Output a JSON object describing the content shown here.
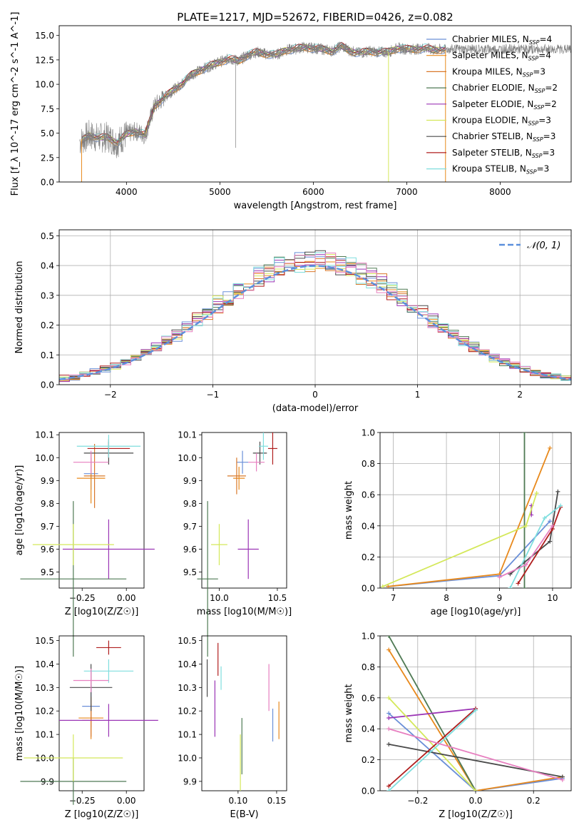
{
  "figure": {
    "title": "PLATE=1217, MJD=52672, FIBERID=0426, z=0.082"
  },
  "colors": {
    "Chabrier MILES": "#6a8fd8",
    "Salpeter MILES": "#e8891c",
    "Kroupa MILES": "#d9782a",
    "Chabrier ELODIE": "#4f7a54",
    "Salpeter ELODIE": "#9b35b5",
    "Kroupa ELODIE": "#d4e85a",
    "Chabrier STELIB": "#4a4a4a",
    "Salpeter STELIB": "#b01e1e",
    "Kroupa STELIB": "#7fdede",
    "data": "#808080",
    "pink": "#e77fc0"
  },
  "chart_data": [
    {
      "id": "spectrum",
      "type": "line",
      "xlabel": "wavelength [Angstrom, rest frame]",
      "ylabel": "Flux [f_λ 10^-17 erg cm^-2 s^-1 A^-1]",
      "xlim": [
        3280,
        8760
      ],
      "ylim": [
        0,
        16
      ],
      "xticks": [
        4000,
        5000,
        6000,
        7000,
        8000
      ],
      "yticks": [
        0.0,
        2.5,
        5.0,
        7.5,
        10.0,
        12.5,
        15.0
      ],
      "legend_position": "upper-right",
      "anchors_x": [
        3520,
        3600,
        3700,
        3800,
        3900,
        4000,
        4100,
        4200,
        4300,
        4400,
        4500,
        4600,
        4700,
        4800,
        4900,
        5000,
        5100,
        5200,
        5300,
        5400,
        5500,
        5600,
        5700,
        5800,
        5900,
        6000,
        6100,
        6200,
        6300,
        6400,
        6500,
        6600,
        6700,
        6800,
        6900,
        7000,
        7100,
        7200,
        7300,
        7400
      ],
      "anchors_y": [
        4.2,
        4.8,
        4.5,
        4.6,
        4.0,
        4.9,
        5.2,
        4.8,
        7.8,
        8.6,
        9.4,
        10.1,
        11.0,
        11.5,
        11.9,
        12.3,
        12.6,
        12.4,
        13.0,
        13.3,
        13.1,
        13.0,
        13.5,
        13.6,
        13.8,
        13.7,
        13.6,
        13.4,
        13.9,
        13.4,
        13.2,
        13.4,
        13.3,
        13.3,
        13.7,
        13.6,
        13.6,
        13.7,
        13.5,
        13.6
      ],
      "series": [
        {
          "name": "Chabrier MILES",
          "n_ssp": "4"
        },
        {
          "name": "Salpeter MILES",
          "n_ssp": "4"
        },
        {
          "name": "Kroupa MILES",
          "n_ssp": "3"
        },
        {
          "name": "Chabrier ELODIE",
          "n_ssp": "2"
        },
        {
          "name": "Salpeter ELODIE",
          "n_ssp": "2"
        },
        {
          "name": "Kroupa ELODIE",
          "n_ssp": "3"
        },
        {
          "name": "Chabrier STELIB",
          "n_ssp": "3"
        },
        {
          "name": "Salpeter STELIB",
          "n_ssp": "3"
        },
        {
          "name": "Kroupa STELIB",
          "n_ssp": "3"
        }
      ]
    },
    {
      "id": "residuals",
      "type": "line",
      "xlabel": "(data-model)/error",
      "ylabel": "Normed distribution",
      "xlim": [
        -2.5,
        2.5
      ],
      "ylim": [
        0,
        0.52
      ],
      "xticks": [
        -2,
        -1,
        0,
        1,
        2
      ],
      "yticks": [
        0.0,
        0.1,
        0.2,
        0.3,
        0.4,
        0.5
      ],
      "grid": true,
      "legend": "𝒩(0, 1)",
      "legend_position": "upper-right",
      "bin_width": 0.1
    },
    {
      "id": "age-vs-Z",
      "type": "scatter",
      "xlabel": "Z [log10(Z/Z☉)]",
      "ylabel": "age  [log10(age/yr)]",
      "xlim": [
        -0.38,
        0.1
      ],
      "ylim": [
        9.43,
        10.11
      ],
      "xticks": [
        -0.25,
        0.0
      ],
      "yticks": [
        9.5,
        9.6,
        9.7,
        9.8,
        9.9,
        10.0,
        10.1
      ],
      "points": [
        {
          "series": "Chabrier MILES",
          "x": -0.2,
          "y": 9.93,
          "xerr": 0.04,
          "yerr": 0.07
        },
        {
          "series": "Salpeter MILES",
          "x": -0.2,
          "y": 9.91,
          "xerr": 0.08,
          "yerr": 0.11
        },
        {
          "series": "Kroupa MILES",
          "x": -0.18,
          "y": 9.92,
          "xerr": 0.06,
          "yerr": 0.14
        },
        {
          "series": "Chabrier ELODIE",
          "x": -0.3,
          "y": 9.47,
          "xerr": 0.3,
          "yerr": 0.34
        },
        {
          "series": "Salpeter ELODIE",
          "x": -0.1,
          "y": 9.6,
          "xerr": 0.26,
          "yerr": 0.13
        },
        {
          "series": "Kroupa ELODIE",
          "x": -0.3,
          "y": 9.62,
          "xerr": 0.23,
          "yerr": 0.09
        },
        {
          "series": "Chabrier STELIB",
          "x": -0.1,
          "y": 10.02,
          "xerr": 0.14,
          "yerr": 0.05
        },
        {
          "series": "Salpeter STELIB",
          "x": -0.1,
          "y": 10.04,
          "xerr": 0.12,
          "yerr": 0.04
        },
        {
          "series": "Kroupa STELIB",
          "x": -0.1,
          "y": 10.05,
          "xerr": 0.18,
          "yerr": 0.05
        },
        {
          "series": "pink",
          "x": -0.2,
          "y": 9.98,
          "xerr": 0.1,
          "yerr": 0.05
        }
      ]
    },
    {
      "id": "age-vs-mass",
      "type": "scatter",
      "xlabel": "mass [log10(M/M☉)]",
      "ylabel": "",
      "xlim": [
        9.85,
        10.58
      ],
      "ylim": [
        9.43,
        10.11
      ],
      "xticks": [
        10.0,
        10.5
      ],
      "yticks": [
        9.5,
        9.6,
        9.7,
        9.8,
        9.9,
        10.0,
        10.1
      ],
      "points": [
        {
          "series": "Chabrier MILES",
          "x": 10.2,
          "y": 9.98,
          "xerr": 0.05,
          "yerr": 0.05
        },
        {
          "series": "Salpeter MILES",
          "x": 10.17,
          "y": 9.91,
          "xerr": 0.05,
          "yerr": 0.05
        },
        {
          "series": "Kroupa MILES",
          "x": 10.15,
          "y": 9.92,
          "xerr": 0.08,
          "yerr": 0.08
        },
        {
          "series": "Chabrier ELODIE",
          "x": 9.9,
          "y": 9.47,
          "xerr": 0.09,
          "yerr": 0.34
        },
        {
          "series": "Salpeter ELODIE",
          "x": 10.25,
          "y": 9.6,
          "xerr": 0.09,
          "yerr": 0.13
        },
        {
          "series": "Kroupa ELODIE",
          "x": 10.0,
          "y": 9.62,
          "xerr": 0.07,
          "yerr": 0.09
        },
        {
          "series": "Chabrier STELIB",
          "x": 10.35,
          "y": 10.02,
          "xerr": 0.06,
          "yerr": 0.05
        },
        {
          "series": "Salpeter STELIB",
          "x": 10.46,
          "y": 10.04,
          "xerr": 0.04,
          "yerr": 0.07
        },
        {
          "series": "Kroupa STELIB",
          "x": 10.38,
          "y": 10.05,
          "xerr": 0.04,
          "yerr": 0.06
        },
        {
          "series": "pink",
          "x": 10.32,
          "y": 9.98,
          "xerr": 0.07,
          "yerr": 0.04
        }
      ]
    },
    {
      "id": "weight-vs-age",
      "type": "line",
      "xlabel": "age  [log10(age/yr)]",
      "ylabel": "mass weight",
      "xlim": [
        6.75,
        10.35
      ],
      "ylim": [
        0,
        1
      ],
      "xticks": [
        7,
        8,
        9,
        10
      ],
      "yticks": [
        0.0,
        0.2,
        0.4,
        0.6,
        0.8,
        1.0
      ],
      "grid": true,
      "lines": [
        {
          "series": "Chabrier MILES",
          "x": [
            6.9,
            9.0,
            9.95
          ],
          "y": [
            0.01,
            0.08,
            0.43
          ]
        },
        {
          "series": "Salpeter MILES",
          "x": [
            6.9,
            9.0,
            9.95
          ],
          "y": [
            0.01,
            0.09,
            0.9
          ]
        },
        {
          "series": "Chabrier ELODIE",
          "x": [
            9.47,
            9.47
          ],
          "y": [
            0.0,
            1.0
          ]
        },
        {
          "series": "Salpeter ELODIE",
          "x": [
            9.6,
            9.6
          ],
          "y": [
            0.47,
            0.53
          ]
        },
        {
          "series": "Kroupa ELODIE",
          "x": [
            6.8,
            9.5,
            9.7
          ],
          "y": [
            0.01,
            0.4,
            0.61
          ]
        },
        {
          "series": "Chabrier STELIB",
          "x": [
            9.2,
            9.95,
            10.1
          ],
          "y": [
            0.09,
            0.3,
            0.62
          ]
        },
        {
          "series": "Salpeter STELIB",
          "x": [
            9.35,
            10.0,
            10.15
          ],
          "y": [
            0.03,
            0.38,
            0.52
          ]
        },
        {
          "series": "Kroupa STELIB",
          "x": [
            9.2,
            9.85,
            10.15
          ],
          "y": [
            0.0,
            0.45,
            0.53
          ]
        },
        {
          "series": "pink",
          "x": [
            9.0,
            9.5,
            10.0
          ],
          "y": [
            0.07,
            0.15,
            0.4
          ]
        }
      ]
    },
    {
      "id": "mass-vs-Z",
      "type": "scatter",
      "xlabel": "Z [log10(Z/Z☉)]",
      "ylabel": "mass [log10(M/M☉)]",
      "xlim": [
        -0.38,
        0.1
      ],
      "ylim": [
        9.86,
        10.52
      ],
      "xticks": [
        -0.25,
        0.0
      ],
      "yticks": [
        9.9,
        10.0,
        10.1,
        10.2,
        10.3,
        10.4,
        10.5
      ],
      "points": [
        {
          "series": "Chabrier MILES",
          "x": -0.2,
          "y": 10.22,
          "xerr": 0.05,
          "yerr": 0.09
        },
        {
          "series": "Salpeter MILES",
          "x": -0.2,
          "y": 10.17,
          "xerr": 0.07,
          "yerr": 0.09
        },
        {
          "series": "Kroupa MILES",
          "x": -0.2,
          "y": 10.16,
          "xerr": 0.05,
          "yerr": 0.07
        },
        {
          "series": "Chabrier ELODIE",
          "x": -0.3,
          "y": 9.9,
          "xerr": 0.3,
          "yerr": 0.1
        },
        {
          "series": "Salpeter ELODIE",
          "x": -0.1,
          "y": 10.16,
          "xerr": 0.28,
          "yerr": 0.07
        },
        {
          "series": "Kroupa ELODIE",
          "x": -0.3,
          "y": 10.0,
          "xerr": 0.28,
          "yerr": 0.1
        },
        {
          "series": "Chabrier STELIB",
          "x": -0.2,
          "y": 10.3,
          "xerr": 0.12,
          "yerr": 0.1
        },
        {
          "series": "Salpeter STELIB",
          "x": -0.1,
          "y": 10.47,
          "xerr": 0.07,
          "yerr": 0.03
        },
        {
          "series": "Kroupa STELIB",
          "x": -0.1,
          "y": 10.37,
          "xerr": 0.14,
          "yerr": 0.05
        },
        {
          "series": "pink",
          "x": -0.2,
          "y": 10.33,
          "xerr": 0.1,
          "yerr": 0.05
        }
      ]
    },
    {
      "id": "mass-vs-EBV",
      "type": "scatter",
      "xlabel": "E(B-V)",
      "ylabel": "",
      "xlim": [
        0.053,
        0.163
      ],
      "ylim": [
        9.86,
        10.52
      ],
      "xticks": [
        0.1,
        0.15
      ],
      "yticks": [
        9.9,
        10.0,
        10.1,
        10.2,
        10.3,
        10.4,
        10.5
      ],
      "points": [
        {
          "series": "Chabrier MILES",
          "x": 0.145,
          "y": 10.14,
          "yerr": 0.07
        },
        {
          "series": "Salpeter MILES",
          "x": 0.153,
          "y": 10.16,
          "yerr": 0.08
        },
        {
          "series": "Chabrier ELODIE",
          "x": 0.105,
          "y": 10.05,
          "yerr": 0.12
        },
        {
          "series": "Salpeter ELODIE",
          "x": 0.07,
          "y": 10.21,
          "yerr": 0.12
        },
        {
          "series": "Kroupa ELODIE",
          "x": 0.103,
          "y": 9.98,
          "yerr": 0.12
        },
        {
          "series": "Chabrier STELIB",
          "x": 0.06,
          "y": 10.34,
          "yerr": 0.08
        },
        {
          "series": "Salpeter STELIB",
          "x": 0.074,
          "y": 10.42,
          "yerr": 0.07
        },
        {
          "series": "Kroupa STELIB",
          "x": 0.078,
          "y": 10.34,
          "yerr": 0.05
        },
        {
          "series": "pink",
          "x": 0.14,
          "y": 10.3,
          "yerr": 0.1
        }
      ]
    },
    {
      "id": "weight-vs-Z",
      "type": "line",
      "xlabel": "Z [log10(Z/Z☉)]",
      "ylabel": "mass weight",
      "xlim": [
        -0.33,
        0.33
      ],
      "ylim": [
        0,
        1
      ],
      "xticks": [
        -0.2,
        0.0,
        0.2
      ],
      "yticks": [
        0.0,
        0.2,
        0.4,
        0.6,
        0.8,
        1.0
      ],
      "grid": true,
      "lines": [
        {
          "series": "Chabrier MILES",
          "x": [
            -0.3,
            0.0,
            0.3
          ],
          "y": [
            0.5,
            0.0,
            0.08
          ]
        },
        {
          "series": "Salpeter MILES",
          "x": [
            -0.3,
            0.0,
            0.3
          ],
          "y": [
            0.91,
            0.0,
            0.09
          ]
        },
        {
          "series": "Chabrier ELODIE",
          "x": [
            -0.3,
            0.0
          ],
          "y": [
            1.0,
            0.0
          ]
        },
        {
          "series": "Salpeter ELODIE",
          "x": [
            -0.3,
            0.0
          ],
          "y": [
            0.47,
            0.53
          ]
        },
        {
          "series": "Kroupa ELODIE",
          "x": [
            -0.3,
            0.0
          ],
          "y": [
            0.6,
            0.0
          ]
        },
        {
          "series": "Chabrier STELIB",
          "x": [
            -0.3,
            0.3
          ],
          "y": [
            0.3,
            0.09
          ]
        },
        {
          "series": "Salpeter STELIB",
          "x": [
            -0.3,
            0.0
          ],
          "y": [
            0.03,
            0.53
          ]
        },
        {
          "series": "Kroupa STELIB",
          "x": [
            -0.3,
            0.0
          ],
          "y": [
            0.0,
            0.52
          ]
        },
        {
          "series": "pink",
          "x": [
            -0.3,
            0.3
          ],
          "y": [
            0.4,
            0.07
          ]
        }
      ]
    }
  ]
}
